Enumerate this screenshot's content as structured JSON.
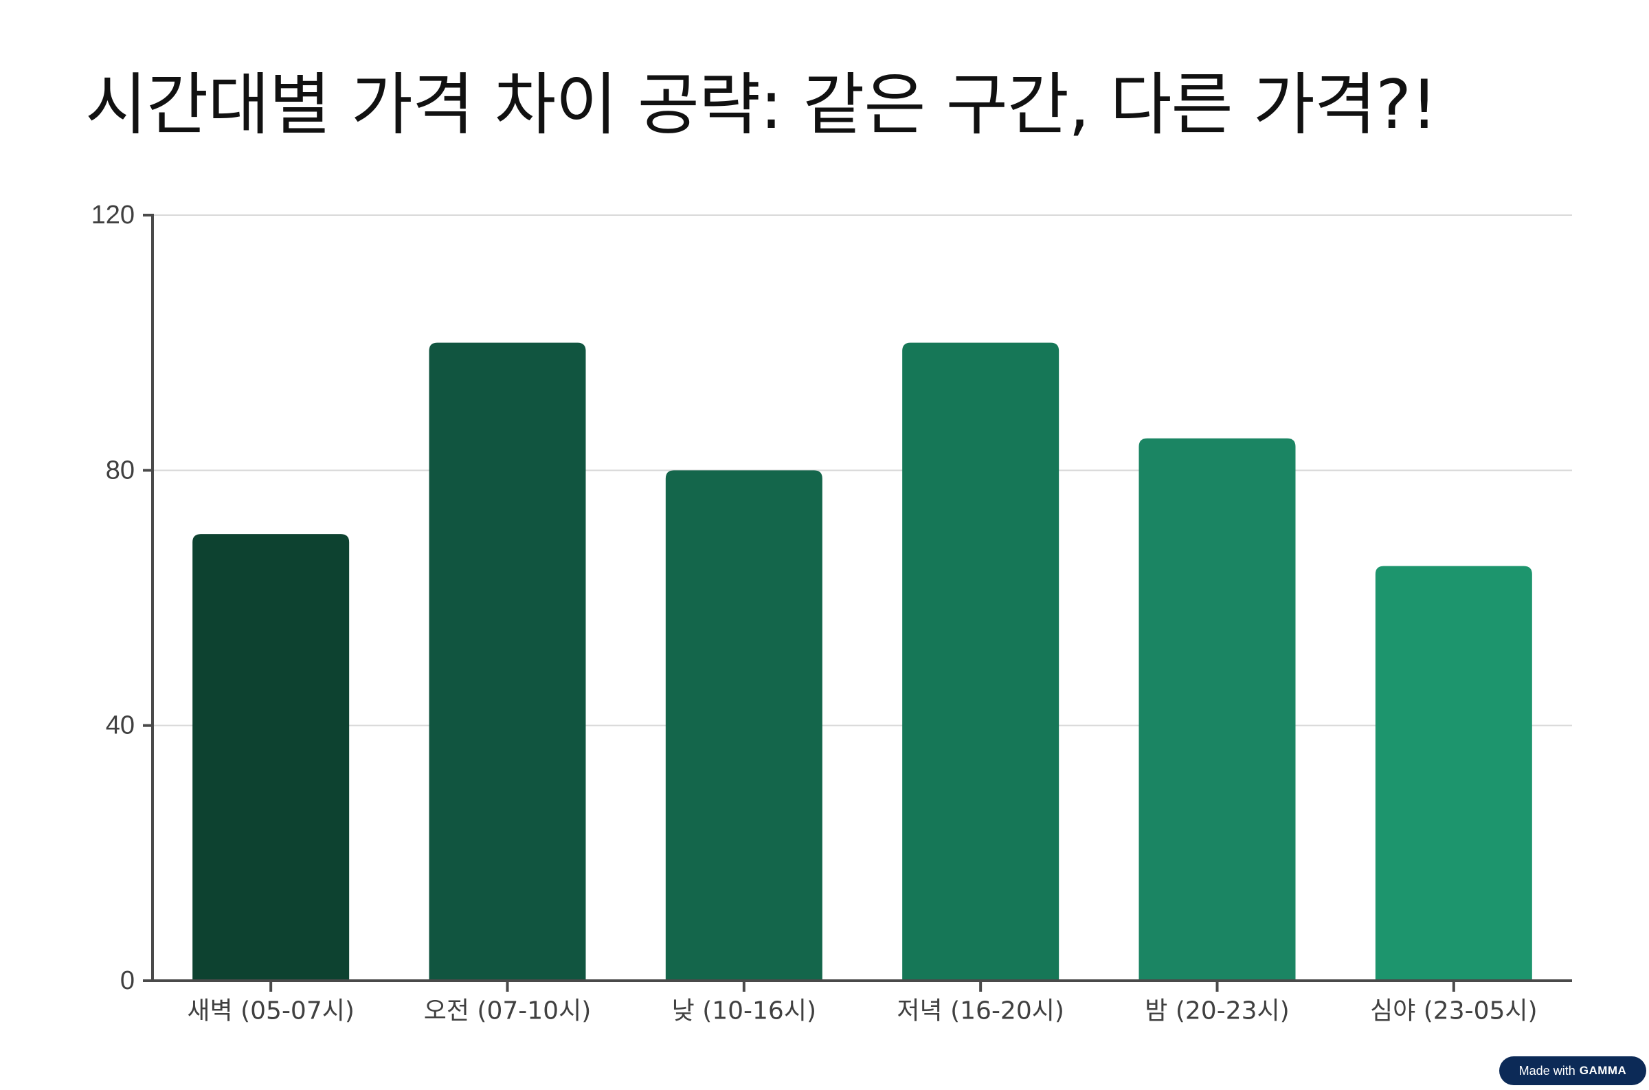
{
  "page": {
    "title": "시간대별 가격 차이 공략: 같은 구간, 다른 가격?!"
  },
  "badge": {
    "prefix": "Made with",
    "brand": "GAMMA"
  },
  "chart_data": {
    "type": "bar",
    "categories": [
      "새벽 (05-07시)",
      "오전 (07-10시)",
      "낮 (10-16시)",
      "저녁 (16-20시)",
      "밤 (20-23시)",
      "심야 (23-05시)"
    ],
    "values": [
      70,
      100,
      80,
      100,
      85,
      65
    ],
    "bar_colors": [
      "#0d4230",
      "#115540",
      "#14664b",
      "#167757",
      "#1b8563",
      "#1d956d"
    ],
    "ylim": [
      0,
      120
    ],
    "yticks": [
      0,
      40,
      80,
      120
    ],
    "grid": true,
    "axis_color": "#4a4a4a",
    "grid_color": "#d9d9d9",
    "xlabel": "",
    "ylabel": ""
  }
}
